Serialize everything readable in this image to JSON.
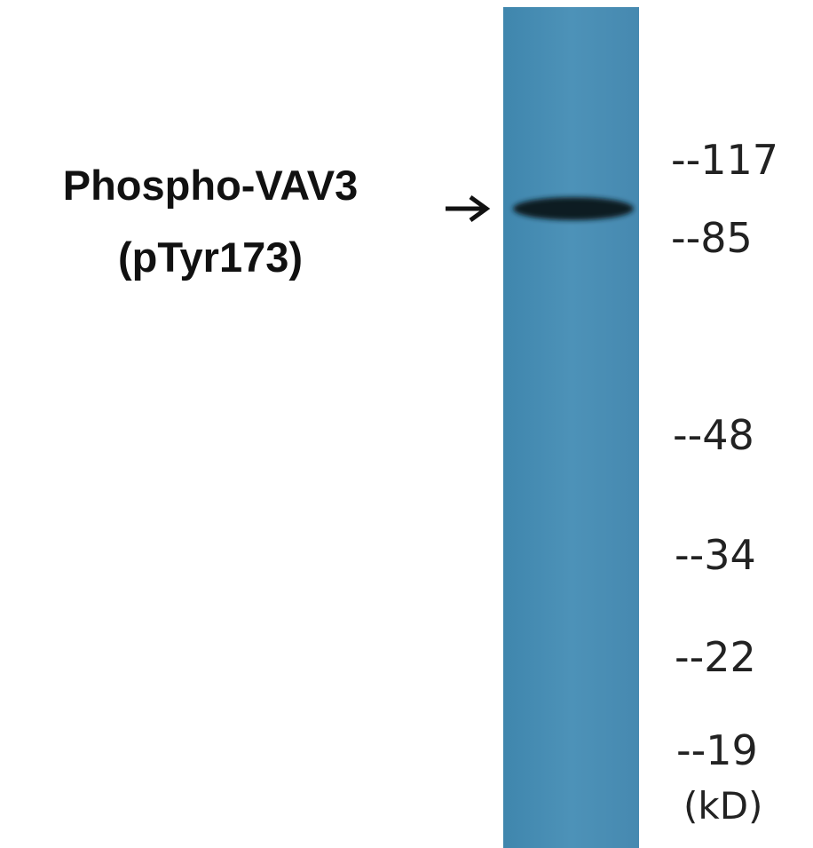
{
  "label": {
    "lines": [
      "Phospho-VAV3",
      "(pTyr173)"
    ]
  },
  "markers": [
    "--117",
    "--85",
    "--48",
    "--34",
    "--22",
    "--19"
  ],
  "unit": "(kD)"
}
